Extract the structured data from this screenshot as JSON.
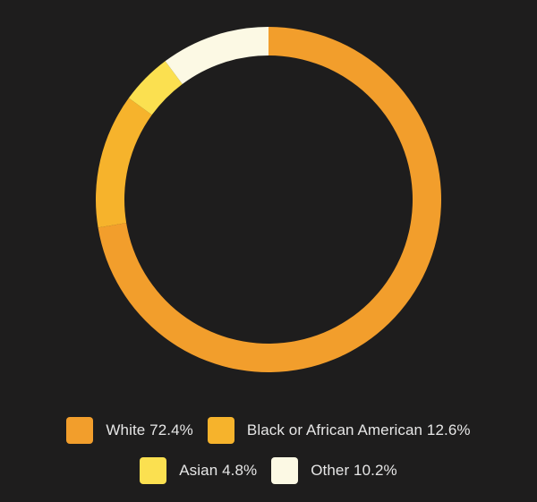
{
  "chart_data": {
    "type": "pie",
    "donut": true,
    "categories": [
      "White",
      "Black or African American",
      "Asian",
      "Other"
    ],
    "values": [
      72.4,
      12.6,
      4.8,
      10.2
    ],
    "colors": [
      "#f29e2c",
      "#f6b32c",
      "#fbe050",
      "#fcf9e4"
    ],
    "legend_labels": [
      "White 72.4%",
      "Black or African American 12.6%",
      "Asian 4.8%",
      "Other 10.2%"
    ],
    "legend_position": "bottom",
    "start": "top",
    "direction": "clockwise"
  },
  "theme": {
    "background": "#1e1d1d"
  }
}
